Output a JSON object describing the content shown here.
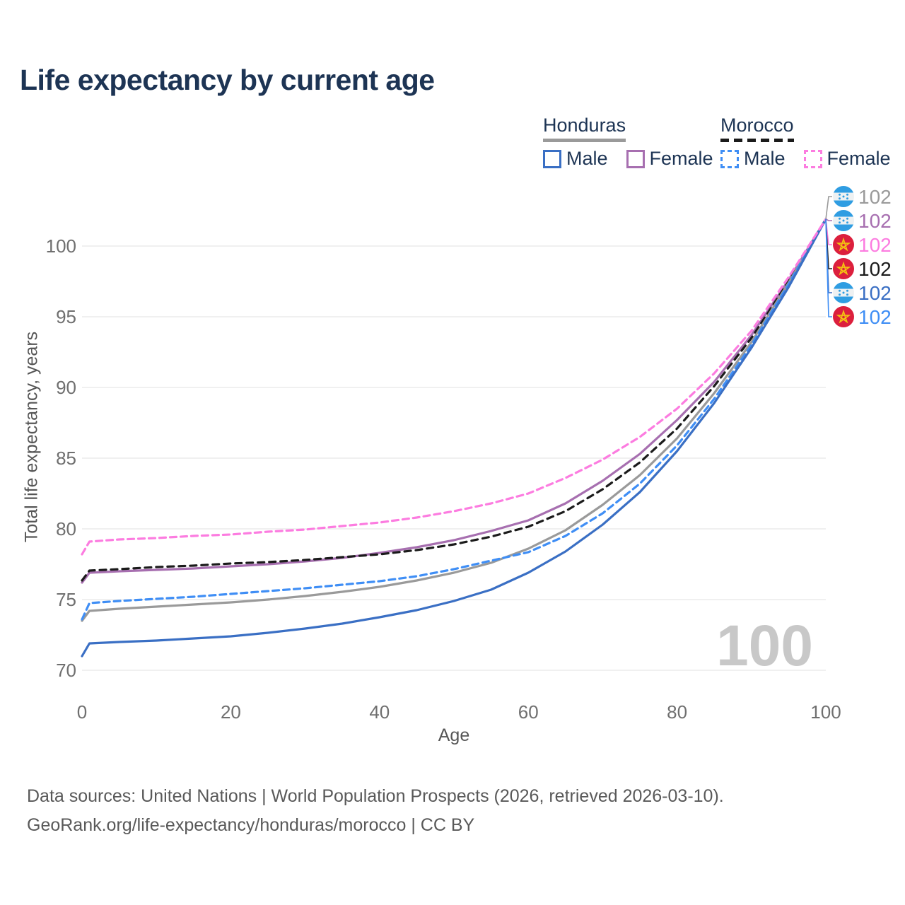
{
  "title": "Life expectancy by current age",
  "legend": {
    "groups": [
      {
        "name": "Honduras",
        "underline_color": "#9a9a9a",
        "underline_style": "solid",
        "items": [
          {
            "label": "Male",
            "color": "#3a6fc4",
            "style": "solid"
          },
          {
            "label": "Female",
            "color": "#a76fb0",
            "style": "solid"
          }
        ]
      },
      {
        "name": "Morocco",
        "underline_color": "#1b1b1b",
        "underline_style": "dashed",
        "items": [
          {
            "label": "Male",
            "color": "#3f8ef5",
            "style": "dashed"
          },
          {
            "label": "Female",
            "color": "#fc7ce0",
            "style": "dashed"
          }
        ]
      }
    ]
  },
  "chart_data": {
    "type": "line",
    "title": "Life expectancy by current age",
    "xlabel": "Age",
    "ylabel": "Total life expectancy, years",
    "xlim": [
      0,
      100
    ],
    "ylim": [
      70,
      102
    ],
    "x_ticks": [
      0,
      20,
      40,
      60,
      80,
      100
    ],
    "y_ticks": [
      70,
      75,
      80,
      85,
      90,
      95,
      100
    ],
    "grid": "horizontal",
    "watermark": "100",
    "x": [
      0,
      1,
      5,
      10,
      15,
      20,
      25,
      30,
      35,
      40,
      45,
      50,
      55,
      60,
      65,
      70,
      75,
      80,
      85,
      90,
      95,
      100
    ],
    "series": [
      {
        "name": "Honduras Female",
        "country": "Honduras",
        "sex": "female",
        "color": "#a76fb0",
        "dash": null,
        "values": [
          76.2,
          76.9,
          77.0,
          77.1,
          77.2,
          77.35,
          77.5,
          77.7,
          77.95,
          78.3,
          78.7,
          79.2,
          79.85,
          80.6,
          81.8,
          83.4,
          85.3,
          87.7,
          90.4,
          93.7,
          97.6,
          101.9
        ]
      },
      {
        "name": "Morocco Both sexes",
        "country": "Morocco",
        "sex": "both",
        "color": "#1b1b1b",
        "dash": "9 7",
        "values": [
          76.35,
          77.05,
          77.15,
          77.3,
          77.4,
          77.55,
          77.65,
          77.8,
          78.0,
          78.2,
          78.5,
          78.9,
          79.45,
          80.15,
          81.25,
          82.8,
          84.7,
          87.1,
          90.1,
          93.5,
          97.5,
          101.9
        ]
      },
      {
        "name": "Honduras Both sexes",
        "country": "Honduras",
        "sex": "both",
        "color": "#9a9a9a",
        "dash": null,
        "values": [
          73.5,
          74.2,
          74.35,
          74.5,
          74.65,
          74.8,
          75.0,
          75.25,
          75.55,
          75.9,
          76.35,
          76.9,
          77.6,
          78.6,
          79.9,
          81.7,
          83.8,
          86.4,
          89.6,
          93.2,
          97.4,
          101.9
        ]
      },
      {
        "name": "Morocco Male",
        "country": "Morocco",
        "sex": "male",
        "color": "#3f8ef5",
        "dash": "9 6",
        "values": [
          73.6,
          74.75,
          74.9,
          75.05,
          75.2,
          75.4,
          75.6,
          75.8,
          76.05,
          76.3,
          76.65,
          77.15,
          77.75,
          78.35,
          79.5,
          81.1,
          83.2,
          85.9,
          89.2,
          93.0,
          97.3,
          101.9
        ]
      },
      {
        "name": "Honduras Male",
        "country": "Honduras",
        "sex": "male",
        "color": "#3a6fc4",
        "dash": null,
        "values": [
          71.0,
          71.9,
          72.0,
          72.1,
          72.25,
          72.4,
          72.65,
          72.95,
          73.3,
          73.75,
          74.25,
          74.9,
          75.7,
          76.9,
          78.4,
          80.3,
          82.6,
          85.5,
          88.9,
          92.8,
          97.1,
          101.9
        ]
      },
      {
        "name": "Morocco Female",
        "country": "Morocco",
        "sex": "female",
        "color": "#fc7ce0",
        "dash": "9 6",
        "values": [
          78.2,
          79.1,
          79.25,
          79.35,
          79.5,
          79.6,
          79.8,
          79.95,
          80.2,
          80.45,
          80.8,
          81.25,
          81.8,
          82.5,
          83.6,
          84.9,
          86.5,
          88.5,
          91.0,
          94.0,
          97.8,
          101.9
        ]
      }
    ],
    "end_labels": [
      {
        "flag": "honduras",
        "label": "102",
        "color": "#9a9a9a",
        "series": "Honduras Both sexes"
      },
      {
        "flag": "honduras",
        "label": "102",
        "color": "#a76fb0",
        "series": "Honduras Female"
      },
      {
        "flag": "morocco",
        "label": "102",
        "color": "#fc7ce0",
        "series": "Morocco Female"
      },
      {
        "flag": "morocco",
        "label": "102",
        "color": "#1b1b1b",
        "series": "Morocco Both sexes"
      },
      {
        "flag": "honduras",
        "label": "102",
        "color": "#3a6fc4",
        "series": "Honduras Male"
      },
      {
        "flag": "morocco",
        "label": "102",
        "color": "#3f8ef5",
        "series": "Morocco Male"
      }
    ]
  },
  "footer": {
    "line1": "Data sources: United Nations | World Population Prospects (2026, retrieved 2026-03-10).",
    "line2": "GeoRank.org/life-expectancy/honduras/morocco | CC BY"
  },
  "colors": {
    "title_text": "#1d3454",
    "axis_text": "#6f6f6f",
    "gridline": "#ececec",
    "watermark": "#c8c8c8",
    "honduras_flag_blue": "#2f9de2",
    "morocco_flag_red": "#dc1f3d",
    "morocco_flag_star": "#f3c211"
  }
}
